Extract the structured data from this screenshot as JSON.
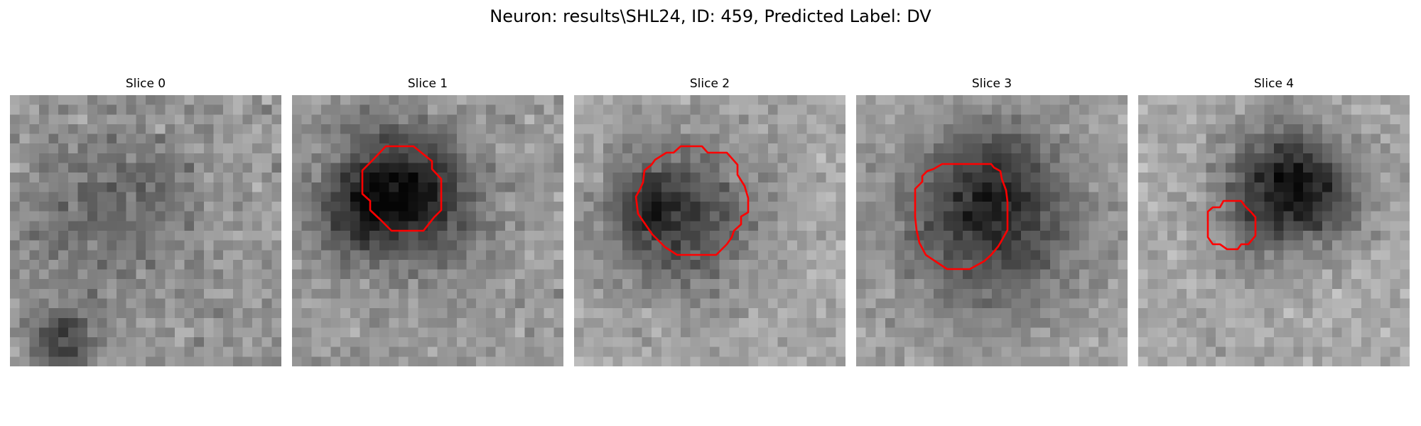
{
  "figure": {
    "title": "Neuron: results\\SHL24, ID: 459, Predicted Label: DV"
  },
  "image_grid": {
    "rows": 28,
    "cols": 28
  },
  "colormap": "gray",
  "contour_color": "#ff0000",
  "panels": [
    {
      "title": "Slice 0",
      "has_contour": false
    },
    {
      "title": "Slice 1",
      "has_contour": true
    },
    {
      "title": "Slice 2",
      "has_contour": true
    },
    {
      "title": "Slice 3",
      "has_contour": true
    },
    {
      "title": "Slice 4",
      "has_contour": true
    }
  ]
}
